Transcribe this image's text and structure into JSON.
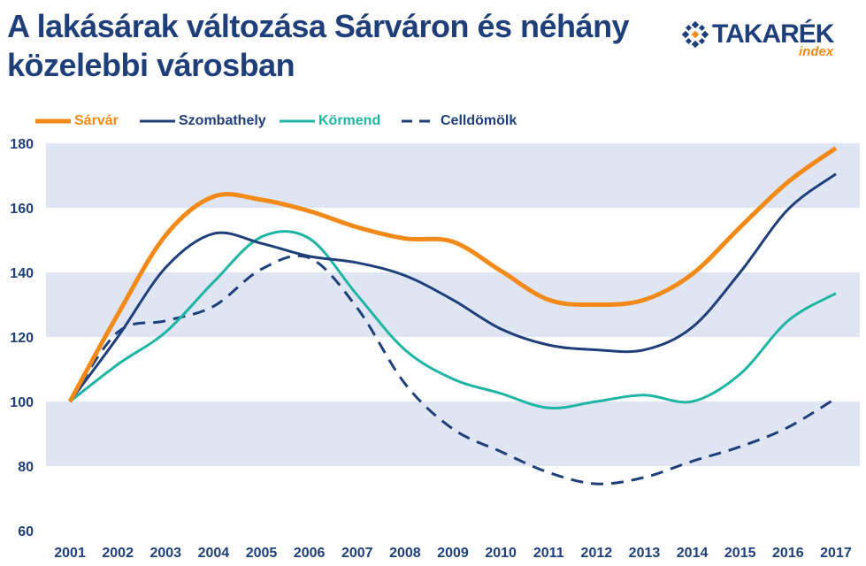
{
  "header": {
    "title": "A lakásárak változása Sárváron és néhány közelebbi városban"
  },
  "logo": {
    "text": "TAKARÉK",
    "sub": "index"
  },
  "chart_data": {
    "type": "line",
    "title": "A lakásárak változása Sárváron és néhány közelebbi városban",
    "xlabel": "",
    "ylabel": "",
    "x": [
      "2001",
      "2002",
      "2003",
      "2004",
      "2005",
      "2006",
      "2007",
      "2008",
      "2009",
      "2010",
      "2011",
      "2012",
      "2013",
      "2014",
      "2015",
      "2016",
      "2017"
    ],
    "ylim": [
      60,
      180
    ],
    "yticks": [
      60,
      80,
      100,
      120,
      140,
      160,
      180
    ],
    "legend_position": "top-left",
    "series": [
      {
        "name": "Sárvár",
        "color": "#f28a1a",
        "style": "solid",
        "values": [
          100,
          127,
          151.5,
          163.5,
          162.5,
          159,
          154,
          150.5,
          149.5,
          140.5,
          131.5,
          130,
          131.5,
          139.5,
          154,
          168,
          178.5
        ]
      },
      {
        "name": "Szombathely",
        "color": "#1f3f7a",
        "style": "solid",
        "values": [
          100,
          120,
          141.5,
          152,
          149,
          145,
          143,
          139,
          131.5,
          122.5,
          117.5,
          116,
          116,
          123,
          140,
          159.5,
          170.5
        ]
      },
      {
        "name": "Körmend",
        "color": "#1fb5a5",
        "style": "solid",
        "values": [
          100,
          111.5,
          121.5,
          137,
          151,
          150.5,
          133,
          116,
          107,
          102.5,
          98,
          100,
          102,
          100,
          108.5,
          125,
          133.5
        ]
      },
      {
        "name": "Celldömölk",
        "color": "#1f3f7a",
        "style": "dashed",
        "values": [
          100,
          121.5,
          125,
          129.5,
          141,
          144.5,
          129,
          105.5,
          91.5,
          84.5,
          78,
          74.5,
          76.5,
          81.5,
          86,
          92,
          101
        ]
      }
    ]
  }
}
